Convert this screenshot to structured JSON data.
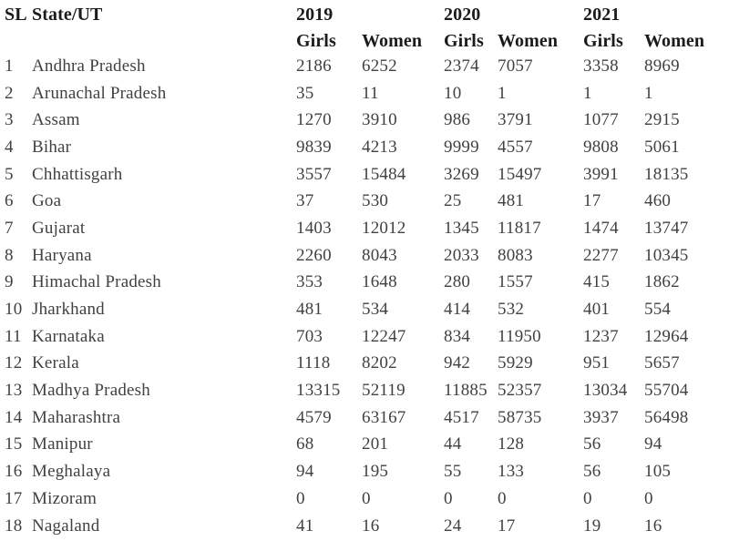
{
  "page": {
    "background": "#ffffff",
    "header_text_color": "#1b1b1b",
    "body_text_color": "#414141"
  },
  "table": {
    "corner": {
      "sl": "SL",
      "state": "State/UT"
    },
    "years": [
      "2019",
      "2020",
      "2021"
    ],
    "subheader": {
      "girls": "Girls",
      "women": "Women"
    },
    "rows": [
      {
        "sl": "1",
        "state": "Andhra Pradesh",
        "values": [
          "2186",
          "6252",
          "2374",
          "7057",
          "3358",
          "8969"
        ]
      },
      {
        "sl": "2",
        "state": "Arunachal Pradesh",
        "values": [
          "35",
          "11",
          "10",
          "1",
          "1",
          "1"
        ]
      },
      {
        "sl": "3",
        "state": "Assam",
        "values": [
          "1270",
          "3910",
          "986",
          "3791",
          "1077",
          "2915"
        ]
      },
      {
        "sl": "4",
        "state": "Bihar",
        "values": [
          "9839",
          "4213",
          "9999",
          "4557",
          "9808",
          "5061"
        ]
      },
      {
        "sl": "5",
        "state": "Chhattisgarh",
        "values": [
          "3557",
          "15484",
          "3269",
          "15497",
          "3991",
          "18135"
        ]
      },
      {
        "sl": "6",
        "state": "Goa",
        "values": [
          "37",
          "530",
          "25",
          "481",
          "17",
          "460"
        ]
      },
      {
        "sl": "7",
        "state": "Gujarat",
        "values": [
          "1403",
          "12012",
          "1345",
          "11817",
          "1474",
          "13747"
        ]
      },
      {
        "sl": "8",
        "state": "Haryana",
        "values": [
          "2260",
          "8043",
          "2033",
          "8083",
          "2277",
          "10345"
        ]
      },
      {
        "sl": "9",
        "state": "Himachal Pradesh",
        "values": [
          "353",
          "1648",
          "280",
          "1557",
          "415",
          "1862"
        ]
      },
      {
        "sl": "10",
        "state": "Jharkhand",
        "values": [
          "481",
          "534",
          "414",
          "532",
          "401",
          "554"
        ]
      },
      {
        "sl": "11",
        "state": "Karnataka",
        "values": [
          "703",
          "12247",
          "834",
          "11950",
          "1237",
          "12964"
        ]
      },
      {
        "sl": "12",
        "state": "Kerala",
        "values": [
          "1118",
          "8202",
          "942",
          "5929",
          "951",
          "5657"
        ]
      },
      {
        "sl": "13",
        "state": "Madhya Pradesh",
        "values": [
          "13315",
          "52119",
          "11885",
          "52357",
          "13034",
          "55704"
        ]
      },
      {
        "sl": "14",
        "state": "Maharashtra",
        "values": [
          "4579",
          "63167",
          "4517",
          "58735",
          "3937",
          "56498"
        ]
      },
      {
        "sl": "15",
        "state": "Manipur",
        "values": [
          "68",
          "201",
          "44",
          "128",
          "56",
          "94"
        ]
      },
      {
        "sl": "16",
        "state": "Meghalaya",
        "values": [
          "94",
          "195",
          "55",
          "133",
          "56",
          "105"
        ]
      },
      {
        "sl": "17",
        "state": "Mizoram",
        "values": [
          "0",
          "0",
          "0",
          "0",
          "0",
          "0"
        ]
      },
      {
        "sl": "18",
        "state": "Nagaland",
        "values": [
          "41",
          "16",
          "24",
          "17",
          "19",
          "16"
        ]
      }
    ]
  }
}
